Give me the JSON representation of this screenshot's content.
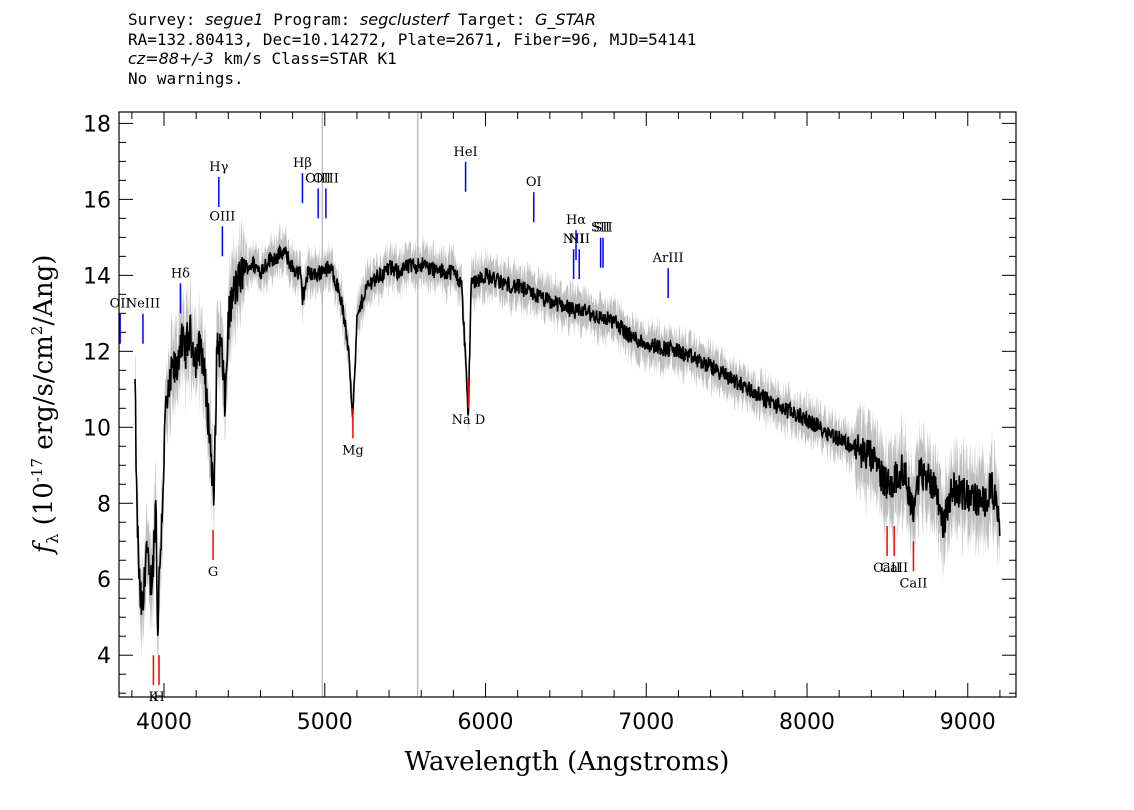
{
  "header": {
    "survey_label": "Survey:",
    "survey": "segue1",
    "program_label": "Program:",
    "program": "segclusterf",
    "target_label": "Target:",
    "target": "G_STAR",
    "line2": "RA=132.80413, Dec=10.14272, Plate=2671, Fiber=96, MJD=54141",
    "cz": "cz=88+/-3",
    "cz_rest": " km/s Class=STAR K1",
    "line4": "No warnings."
  },
  "chart_data": {
    "type": "line",
    "xlabel": "Wavelength (Angstroms)",
    "ylabel": "f_λ (10^-17 erg/s/cm^2/Ang)",
    "xlim": [
      3720,
      9300
    ],
    "ylim": [
      2.9,
      18.3
    ],
    "xticks": [
      4000,
      5000,
      6000,
      7000,
      8000,
      9000
    ],
    "yticks": [
      4,
      6,
      8,
      10,
      12,
      14,
      16,
      18
    ],
    "series": [
      {
        "color": "#000000",
        "x": [
          3820,
          3830,
          3850,
          3870,
          3890,
          3910,
          3930,
          3950,
          3960,
          3970,
          3990,
          4010,
          4030,
          4050,
          4080,
          4100,
          4130,
          4160,
          4200,
          4230,
          4260,
          4290,
          4310,
          4330,
          4360,
          4380,
          4400,
          4430,
          4460,
          4500,
          4550,
          4600,
          4650,
          4700,
          4750,
          4800,
          4850,
          4861,
          4900,
          4950,
          5000,
          5050,
          5100,
          5150,
          5172,
          5183,
          5200,
          5250,
          5300,
          5350,
          5400,
          5450,
          5500,
          5600,
          5700,
          5800,
          5850,
          5880,
          5893,
          5910,
          5950,
          6000,
          6100,
          6200,
          6300,
          6400,
          6500,
          6563,
          6600,
          6700,
          6800,
          6900,
          7000,
          7200,
          7400,
          7600,
          7800,
          8000,
          8200,
          8400,
          8498,
          8542,
          8600,
          8662,
          8700,
          8800,
          8850,
          8900,
          9000,
          9100,
          9150,
          9200
        ],
        "values": [
          11.1,
          8.0,
          5.5,
          5.2,
          7.0,
          5.8,
          6.2,
          8.2,
          4.5,
          6.0,
          8.0,
          10.5,
          10.8,
          11.5,
          11.5,
          12.3,
          12.0,
          12.5,
          11.8,
          12.2,
          11.0,
          9.5,
          8.0,
          12.2,
          12.0,
          10.5,
          12.8,
          13.5,
          13.8,
          14.2,
          14.3,
          14.1,
          14.4,
          14.5,
          14.6,
          14.2,
          14.0,
          13.4,
          14.1,
          14.0,
          14.2,
          14.1,
          13.4,
          12.0,
          10.4,
          11.0,
          12.8,
          13.6,
          13.9,
          14.0,
          14.2,
          14.1,
          14.2,
          14.3,
          14.1,
          14.1,
          13.8,
          11.5,
          10.2,
          13.8,
          13.9,
          14.0,
          13.8,
          13.7,
          13.5,
          13.3,
          13.2,
          13.0,
          13.1,
          12.9,
          12.8,
          12.4,
          12.2,
          12.0,
          11.6,
          11.1,
          10.6,
          10.2,
          9.7,
          9.2,
          8.5,
          8.6,
          8.9,
          7.8,
          8.8,
          8.5,
          7.4,
          8.4,
          8.2,
          8.0,
          8.5,
          7.3
        ]
      }
    ],
    "sky_lines": [
      4985,
      5578
    ],
    "emission_lines": [
      {
        "label": "Hγ",
        "wavelength": 4341,
        "y": 15.8
      },
      {
        "label": "OIII",
        "wavelength": 4363,
        "y": 14.5
      },
      {
        "label": "Hδ",
        "wavelength": 4102,
        "y": 13.0
      },
      {
        "label": "NeIII",
        "wavelength": 3869,
        "y": 12.2
      },
      {
        "label": "OII",
        "wavelength": 3727,
        "y": 12.2
      },
      {
        "label": "Hβ",
        "wavelength": 4861,
        "y": 15.9
      },
      {
        "label": "OIII",
        "wavelength": 4959,
        "y": 15.5
      },
      {
        "label": "OIII",
        "wavelength": 5007,
        "y": 15.5
      },
      {
        "label": "HeI",
        "wavelength": 5876,
        "y": 16.2
      },
      {
        "label": "OI",
        "wavelength": 6300,
        "y": 15.4
      },
      {
        "label": "NII",
        "wavelength": 6548,
        "y": 13.9
      },
      {
        "label": "Hα",
        "wavelength": 6563,
        "y": 14.4
      },
      {
        "label": "NII",
        "wavelength": 6583,
        "y": 13.9
      },
      {
        "label": "SII",
        "wavelength": 6716,
        "y": 14.2
      },
      {
        "label": "SII",
        "wavelength": 6731,
        "y": 14.2
      },
      {
        "label": "ArIII",
        "wavelength": 7136,
        "y": 13.4
      }
    ],
    "absorption_lines": [
      {
        "label": "K",
        "wavelength": 3934,
        "y": 4.0
      },
      {
        "label": "H",
        "wavelength": 3969,
        "y": 4.0
      },
      {
        "label": "G",
        "wavelength": 4305,
        "y": 7.3
      },
      {
        "label": "Mg",
        "wavelength": 5175,
        "y": 10.5
      },
      {
        "label": "Na D",
        "wavelength": 5894,
        "y": 11.3
      },
      {
        "label": "CaII",
        "wavelength": 8498,
        "y": 7.4
      },
      {
        "label": "CaII",
        "wavelength": 8542,
        "y": 7.4
      },
      {
        "label": "CaII",
        "wavelength": 8662,
        "y": 7.0
      }
    ],
    "colors": {
      "flux": "#000000",
      "error": "#bebebe",
      "emission": "#0000ff",
      "absorption": "#ff0000",
      "sky": "#bebebe"
    }
  }
}
